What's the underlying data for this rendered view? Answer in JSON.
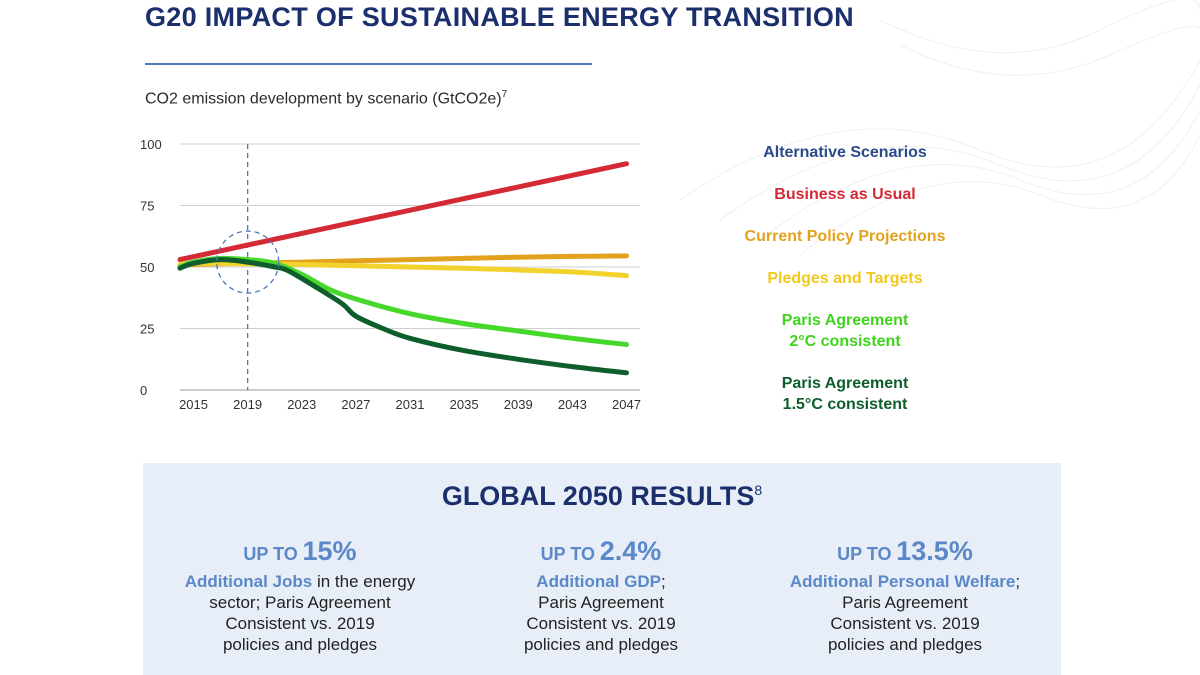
{
  "page": {
    "title": "G20 IMPACT OF SUSTAINABLE ENERGY TRANSITION"
  },
  "chart_title": {
    "text": "CO2 emission development by scenario (GtCO2e)",
    "footnote": "7"
  },
  "chart_data": {
    "type": "line",
    "title": "CO2 emission development by scenario (GtCO2e)",
    "xlabel": "",
    "ylabel": "",
    "x_ticks": [
      "2015",
      "2019",
      "2023",
      "2027",
      "2031",
      "2035",
      "2039",
      "2043",
      "2047"
    ],
    "y_ticks": [
      "0",
      "25",
      "50",
      "75",
      "100"
    ],
    "xlim": [
      2014,
      2048
    ],
    "ylim": [
      0,
      100
    ],
    "grid": true,
    "highlight": {
      "year": 2019,
      "value": 52
    },
    "series": [
      {
        "name": "Business as Usual",
        "color": "#d42a35",
        "x": [
          2014,
          2047
        ],
        "y": [
          53,
          92
        ]
      },
      {
        "name": "Current Policy Projections",
        "color": "#e2a21e",
        "x": [
          2014,
          2015,
          2019,
          2023,
          2027,
          2031,
          2035,
          2039,
          2043,
          2047
        ],
        "y": [
          50,
          51,
          51.5,
          52,
          52.5,
          53,
          53.5,
          54,
          54.3,
          54.5
        ]
      },
      {
        "name": "Pledges and Targets",
        "color": "#f2d22c",
        "x": [
          2014,
          2015,
          2019,
          2023,
          2027,
          2031,
          2035,
          2039,
          2043,
          2047
        ],
        "y": [
          51,
          51.5,
          51.3,
          51,
          50.5,
          50,
          49.5,
          48.8,
          48,
          46.5
        ]
      },
      {
        "name": "Paris Agreement 2°C consistent",
        "color": "#46d82a",
        "x": [
          2014,
          2015,
          2017,
          2019,
          2021,
          2023,
          2025,
          2027,
          2031,
          2035,
          2039,
          2043,
          2047
        ],
        "y": [
          50,
          52,
          53.5,
          53,
          51.5,
          47,
          41,
          37,
          31,
          27,
          24,
          21,
          18.5
        ]
      },
      {
        "name": "Paris Agreement 1.5°C consistent",
        "color": "#0d5e2c",
        "x": [
          2014,
          2015,
          2017,
          2019,
          2021,
          2022,
          2024,
          2026,
          2027,
          2029,
          2031,
          2035,
          2039,
          2043,
          2047
        ],
        "y": [
          49.5,
          51.5,
          53,
          52,
          50,
          48.5,
          42,
          35,
          30,
          25,
          21,
          16,
          12.5,
          9.5,
          7
        ]
      }
    ]
  },
  "legend": {
    "heading": "Alternative Scenarios",
    "items": [
      {
        "lines": [
          "Business as Usual"
        ],
        "color": "#d42a35"
      },
      {
        "lines": [
          "Current Policy Projections"
        ],
        "color": "#e2a21e"
      },
      {
        "lines": [
          "Pledges and Targets"
        ],
        "color": "#f2c81a"
      },
      {
        "lines": [
          "Paris Agreement",
          "2°C consistent"
        ],
        "color": "#3ed41c"
      },
      {
        "lines": [
          "Paris Agreement",
          "1.5°C consistent"
        ],
        "color": "#0d5e2c"
      }
    ]
  },
  "results": {
    "title": "GLOBAL 2050 RESULTS",
    "footnote": "8",
    "cards": [
      {
        "up_to": "UP TO",
        "value": "15%",
        "highlight": "Additional Jobs",
        "rest_inline": " in the energy",
        "lines": [
          "sector; Paris Agreement",
          "Consistent vs. 2019",
          "policies and pledges"
        ]
      },
      {
        "up_to": "UP TO",
        "value": "2.4%",
        "highlight": "Additional GDP",
        "rest_inline": ";",
        "lines": [
          "Paris Agreement",
          "Consistent vs. 2019",
          "policies and pledges"
        ]
      },
      {
        "up_to": "UP TO",
        "value": "13.5%",
        "highlight": "Additional Personal Welfare",
        "rest_inline": ";",
        "lines": [
          "Paris Agreement",
          "Consistent vs. 2019",
          "policies and pledges"
        ]
      }
    ]
  }
}
